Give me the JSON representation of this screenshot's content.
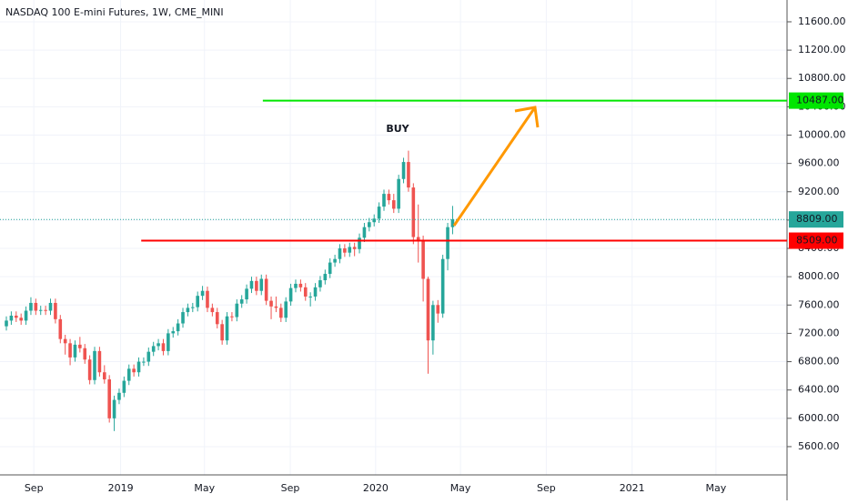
{
  "chart_data": {
    "type": "candlestick",
    "title": "NASDAQ 100 E-mini Futures, 1W, CME_MINI",
    "up_color": "#26a69a",
    "down_color": "#ef5350",
    "grid": true,
    "xlim": [
      -1.3,
      159.2
    ],
    "xticks": [
      {
        "value": 5.6,
        "label": "Sep"
      },
      {
        "value": 23.3,
        "label": "2019"
      },
      {
        "value": 40.4,
        "label": "May"
      },
      {
        "value": 57.9,
        "label": "Sep"
      },
      {
        "value": 75.3,
        "label": "2020"
      },
      {
        "value": 92.6,
        "label": "May"
      },
      {
        "value": 110.1,
        "label": "Sep"
      },
      {
        "value": 127.6,
        "label": "2021"
      },
      {
        "value": 144.7,
        "label": "May"
      }
    ],
    "ylim": [
      5201,
      11908
    ],
    "yticks": [
      {
        "value": 5600,
        "label": "5600.00"
      },
      {
        "value": 6000,
        "label": "6000.00"
      },
      {
        "value": 6400,
        "label": "6400.00"
      },
      {
        "value": 6800,
        "label": "6800.00"
      },
      {
        "value": 7200,
        "label": "7200.00"
      },
      {
        "value": 7600,
        "label": "7600.00"
      },
      {
        "value": 8000,
        "label": "8000.00"
      },
      {
        "value": 8400,
        "label": "8400.00"
      },
      {
        "value": 8800,
        "label": "8800.00"
      },
      {
        "value": 9200,
        "label": "9200.00"
      },
      {
        "value": 9600,
        "label": "9600.00"
      },
      {
        "value": 10000,
        "label": "10000.00"
      },
      {
        "value": 10400,
        "label": "10400.00"
      },
      {
        "value": 10800,
        "label": "10800.00"
      },
      {
        "value": 11200,
        "label": "11200.00"
      },
      {
        "value": 11600,
        "label": "11600.00"
      }
    ],
    "open": [
      7300,
      7380,
      7450,
      7420,
      7380,
      7520,
      7630,
      7520,
      7530,
      7520,
      7630,
      7400,
      7120,
      7060,
      6860,
      7040,
      6990,
      6830,
      6540,
      6950,
      6650,
      6550,
      6000,
      6260,
      6360,
      6530,
      6700,
      6650,
      6800,
      6800,
      6940,
      7020,
      7060,
      6950,
      7200,
      7230,
      7340,
      7500,
      7560,
      7570,
      7730,
      7800,
      7560,
      7500,
      7330,
      7100,
      7440,
      7430,
      7620,
      7680,
      7830,
      7940,
      7800,
      7970,
      7660,
      7580,
      7560,
      7420,
      7650,
      7840,
      7900,
      7850,
      7720,
      7720,
      7850,
      7950,
      8040,
      8200,
      8250,
      8400,
      8340,
      8420,
      8390,
      8550,
      8700,
      8770,
      8820,
      8990,
      9170,
      9080,
      8960,
      9380,
      9620,
      9260,
      8560,
      8520,
      7970,
      7100,
      7600,
      7480,
      8250,
      8700
    ],
    "high": [
      7440,
      7510,
      7510,
      7480,
      7580,
      7710,
      7690,
      7590,
      7590,
      7690,
      7690,
      7460,
      7180,
      7120,
      7100,
      7150,
      7050,
      6890,
      7010,
      7010,
      6750,
      6610,
      6320,
      6420,
      6590,
      6760,
      6760,
      6860,
      6860,
      7000,
      7080,
      7120,
      7120,
      7260,
      7290,
      7400,
      7560,
      7620,
      7630,
      7790,
      7870,
      7860,
      7620,
      7560,
      7390,
      7500,
      7500,
      7680,
      7740,
      7890,
      8000,
      8000,
      8030,
      8030,
      7720,
      7720,
      7620,
      7710,
      7900,
      7960,
      7960,
      7910,
      7780,
      7910,
      8010,
      8100,
      8260,
      8310,
      8460,
      8460,
      8480,
      8480,
      8610,
      8760,
      8830,
      8880,
      9050,
      9230,
      9230,
      9170,
      9440,
      9680,
      9780,
      9320,
      9020,
      8580,
      8000,
      7660,
      7670,
      8310,
      8760,
      9000
    ],
    "low": [
      7240,
      7320,
      7360,
      7320,
      7320,
      7460,
      7460,
      7460,
      7460,
      7460,
      7340,
      7060,
      6900,
      6750,
      6800,
      6930,
      6770,
      6480,
      6480,
      6590,
      6490,
      5940,
      5820,
      6200,
      6300,
      6470,
      6590,
      6590,
      6740,
      6740,
      6880,
      6960,
      6890,
      6890,
      7140,
      7170,
      7280,
      7440,
      7500,
      7510,
      7670,
      7500,
      7440,
      7270,
      7040,
      7040,
      7370,
      7370,
      7560,
      7620,
      7770,
      7740,
      7740,
      7600,
      7400,
      7500,
      7360,
      7360,
      7590,
      7780,
      7790,
      7660,
      7580,
      7660,
      7790,
      7890,
      7980,
      8140,
      8190,
      8280,
      8280,
      8290,
      8330,
      8490,
      8640,
      8710,
      8760,
      8930,
      9020,
      8900,
      8900,
      9320,
      9200,
      8460,
      8200,
      7650,
      6630,
      6900,
      7350,
      7420,
      8090,
      8600
    ],
    "close": [
      7380,
      7450,
      7420,
      7380,
      7520,
      7630,
      7520,
      7530,
      7520,
      7630,
      7400,
      7120,
      7060,
      6860,
      7040,
      6990,
      6830,
      6540,
      6950,
      6650,
      6550,
      6000,
      6260,
      6360,
      6530,
      6700,
      6650,
      6800,
      6800,
      6940,
      7020,
      7060,
      6950,
      7200,
      7230,
      7340,
      7500,
      7560,
      7570,
      7730,
      7800,
      7560,
      7500,
      7330,
      7100,
      7440,
      7430,
      7620,
      7680,
      7830,
      7940,
      7800,
      7970,
      7660,
      7580,
      7560,
      7420,
      7650,
      7840,
      7900,
      7850,
      7720,
      7720,
      7850,
      7950,
      8040,
      8200,
      8250,
      8400,
      8340,
      8420,
      8390,
      8550,
      8700,
      8770,
      8820,
      8990,
      9170,
      9080,
      8960,
      9380,
      9620,
      9260,
      8560,
      8520,
      7970,
      7100,
      7600,
      7480,
      8250,
      8700,
      8809
    ],
    "levels": [
      {
        "value": 10487,
        "label": "10487.00",
        "color": "#00e600",
        "x_start": 52.3,
        "style": "solid"
      },
      {
        "value": 8809,
        "label": "8809.00",
        "color": "#26a69a",
        "x_start": -1.3,
        "style": "dotted"
      },
      {
        "value": 8509,
        "label": "8509.00",
        "color": "#ff0000",
        "x_start": 27.5,
        "style": "solid"
      }
    ],
    "annotation": {
      "text": "BUY",
      "color": "#00e600"
    },
    "arrow": {
      "color": "#ff9800",
      "x": [
        91.3,
        107.8
      ],
      "y": [
        8722,
        10392
      ]
    }
  }
}
